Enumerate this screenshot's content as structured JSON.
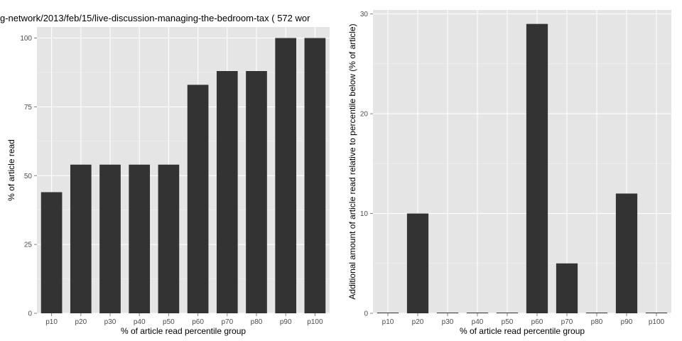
{
  "colors": {
    "panel": "#e5e5e5",
    "grid_major": "#ffffff",
    "grid_minor": "#f2f2f2",
    "bar": "#333333",
    "tick": "#4d4d4d"
  },
  "chart_data": [
    {
      "type": "bar",
      "title": "g-network/2013/feb/15/live-discussion-managing-the-bedroom-tax ( 572 wor",
      "xlabel": "% of article read percentile group",
      "ylabel": "% of article read",
      "categories": [
        "p10",
        "p20",
        "p30",
        "p40",
        "p50",
        "p60",
        "p70",
        "p80",
        "p90",
        "p100"
      ],
      "values": [
        44,
        54,
        54,
        54,
        54,
        83,
        88,
        88,
        100,
        100
      ],
      "ylim": [
        0,
        104
      ],
      "yticks": [
        0,
        25,
        50,
        75,
        100
      ],
      "grid": true
    },
    {
      "type": "bar",
      "title": "",
      "xlabel": "% of article read percentile group",
      "ylabel": "Additional amount of article read relative to percentile below (% of article)",
      "categories": [
        "p10",
        "p20",
        "p30",
        "p40",
        "p50",
        "p60",
        "p70",
        "p80",
        "p90",
        "p100"
      ],
      "values": [
        0,
        10,
        0,
        0,
        0,
        29,
        5,
        0,
        12,
        0
      ],
      "ylim": [
        0,
        30.4
      ],
      "yticks": [
        0,
        10,
        20,
        30
      ],
      "grid": true
    }
  ]
}
